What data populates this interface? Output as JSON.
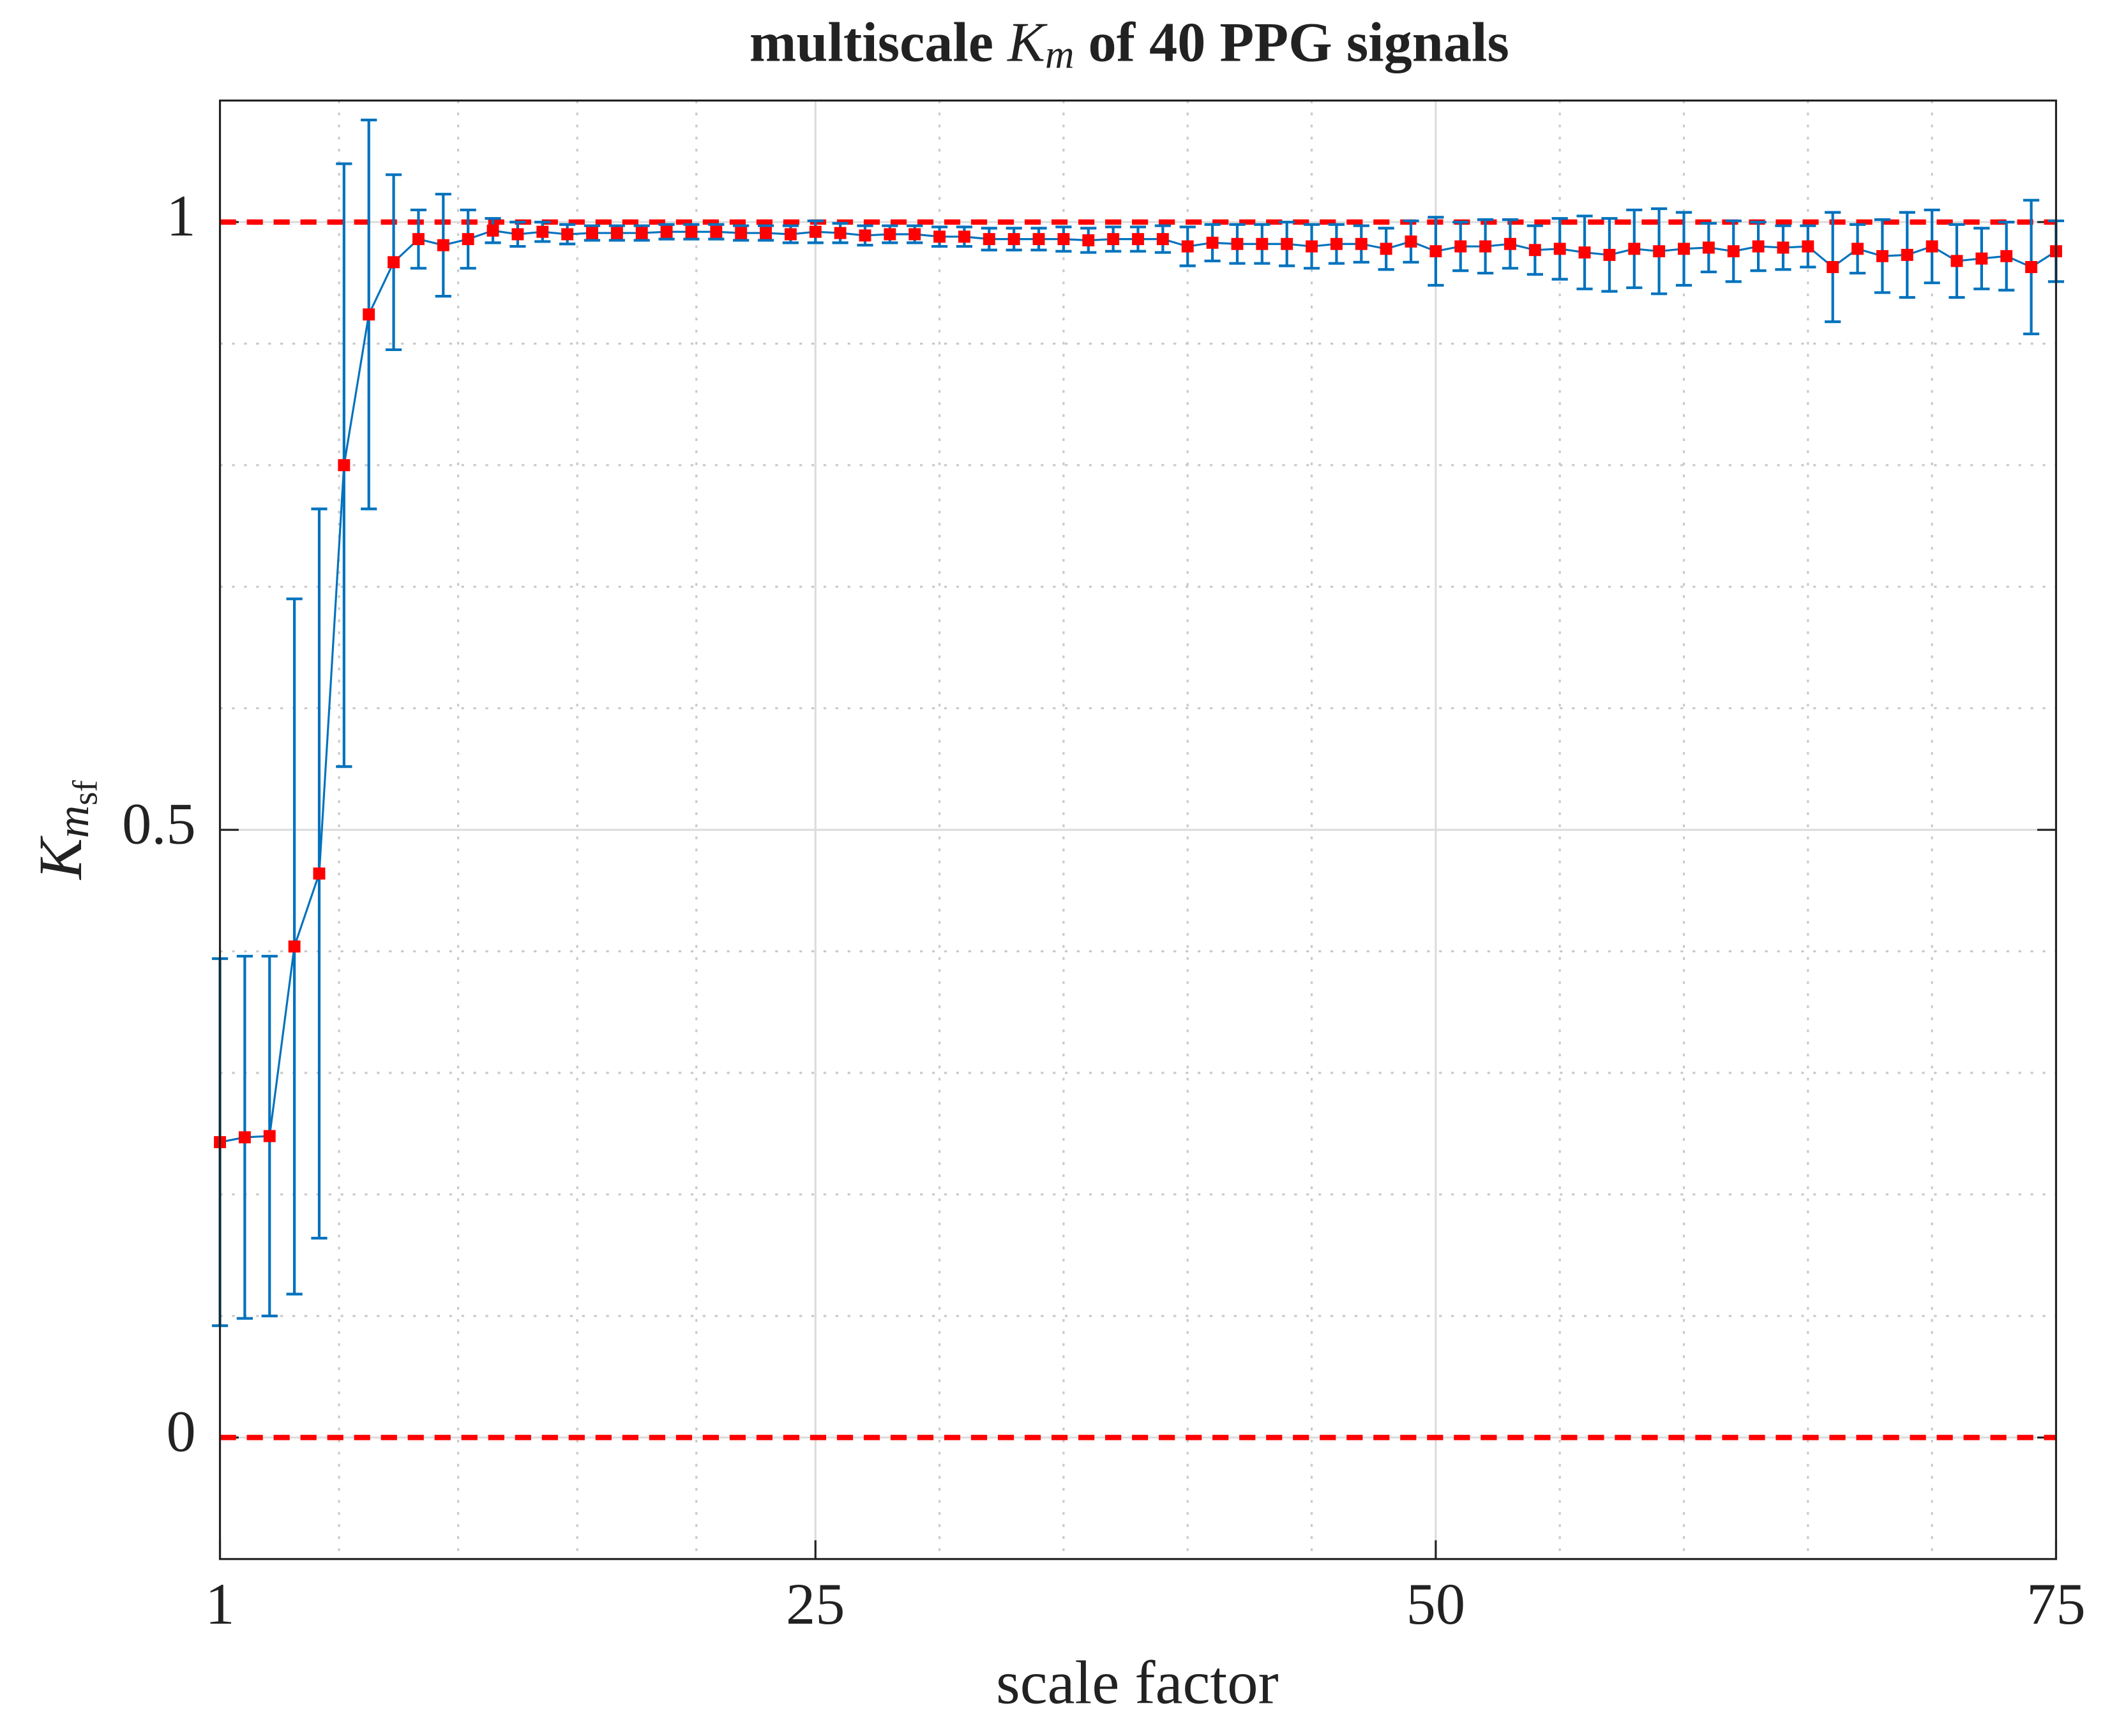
{
  "chart_data": {
    "type": "errorbar",
    "title_parts": [
      "multiscale ",
      "K",
      "m",
      " of 40 PPG signals"
    ],
    "ylabel_parts": [
      "K",
      "m",
      "sf"
    ],
    "xlabel": "scale factor",
    "x": [
      1,
      2,
      3,
      4,
      5,
      6,
      7,
      8,
      9,
      10,
      11,
      12,
      13,
      14,
      15,
      16,
      17,
      18,
      19,
      20,
      21,
      22,
      23,
      24,
      25,
      26,
      27,
      28,
      29,
      30,
      31,
      32,
      33,
      34,
      35,
      36,
      37,
      38,
      39,
      40,
      41,
      42,
      43,
      44,
      45,
      46,
      47,
      48,
      49,
      50,
      51,
      52,
      53,
      54,
      55,
      56,
      57,
      58,
      59,
      60,
      61,
      62,
      63,
      64,
      65,
      66,
      67,
      68,
      69,
      70,
      71,
      72,
      73,
      74,
      75
    ],
    "series": [
      {
        "color": "#0072bd",
        "marker_color": "#ff0000",
        "values": [
          0.243,
          0.247,
          0.248,
          0.404,
          0.464,
          0.8,
          0.924,
          0.967,
          0.986,
          0.981,
          0.986,
          0.993,
          0.99,
          0.992,
          0.99,
          0.991,
          0.991,
          0.991,
          0.992,
          0.992,
          0.992,
          0.991,
          0.991,
          0.99,
          0.992,
          0.991,
          0.989,
          0.99,
          0.99,
          0.988,
          0.988,
          0.986,
          0.986,
          0.986,
          0.986,
          0.985,
          0.986,
          0.986,
          0.986,
          0.98,
          0.983,
          0.982,
          0.982,
          0.982,
          0.98,
          0.982,
          0.982,
          0.978,
          0.984,
          0.976,
          0.98,
          0.98,
          0.982,
          0.977,
          0.978,
          0.975,
          0.973,
          0.978,
          0.976,
          0.978,
          0.979,
          0.976,
          0.98,
          0.979,
          0.98,
          0.963,
          0.978,
          0.972,
          0.973,
          0.98,
          0.968,
          0.97,
          0.972,
          0.963,
          0.976
        ],
        "errors": [
          0.151,
          0.149,
          0.148,
          0.286,
          0.3,
          0.248,
          0.16,
          0.072,
          0.024,
          0.042,
          0.024,
          0.01,
          0.01,
          0.008,
          0.008,
          0.006,
          0.006,
          0.006,
          0.006,
          0.006,
          0.006,
          0.006,
          0.006,
          0.007,
          0.009,
          0.008,
          0.008,
          0.007,
          0.007,
          0.008,
          0.008,
          0.009,
          0.009,
          0.009,
          0.01,
          0.01,
          0.01,
          0.01,
          0.011,
          0.016,
          0.015,
          0.016,
          0.016,
          0.018,
          0.018,
          0.016,
          0.015,
          0.017,
          0.017,
          0.028,
          0.02,
          0.022,
          0.02,
          0.02,
          0.025,
          0.03,
          0.03,
          0.032,
          0.035,
          0.03,
          0.02,
          0.025,
          0.02,
          0.018,
          0.017,
          0.045,
          0.02,
          0.03,
          0.035,
          0.03,
          0.03,
          0.025,
          0.028,
          0.055,
          0.025
        ]
      }
    ],
    "hlines": [
      0,
      1
    ],
    "hline_color": "#ff0000",
    "xlim": [
      1,
      75
    ],
    "ylim": [
      -0.1,
      1.1
    ],
    "xticks": [
      1,
      25,
      50,
      75
    ],
    "yticks": [
      0,
      0.5,
      1
    ],
    "xminorticks": [
      5.8,
      10.6,
      15.4,
      20.2,
      30,
      35,
      40,
      45,
      55,
      60,
      65,
      70
    ],
    "yminorticks": [
      0.1,
      0.2,
      0.3,
      0.4,
      0.6,
      0.7,
      0.8,
      0.9
    ],
    "grid": true,
    "minor_grid": true
  }
}
